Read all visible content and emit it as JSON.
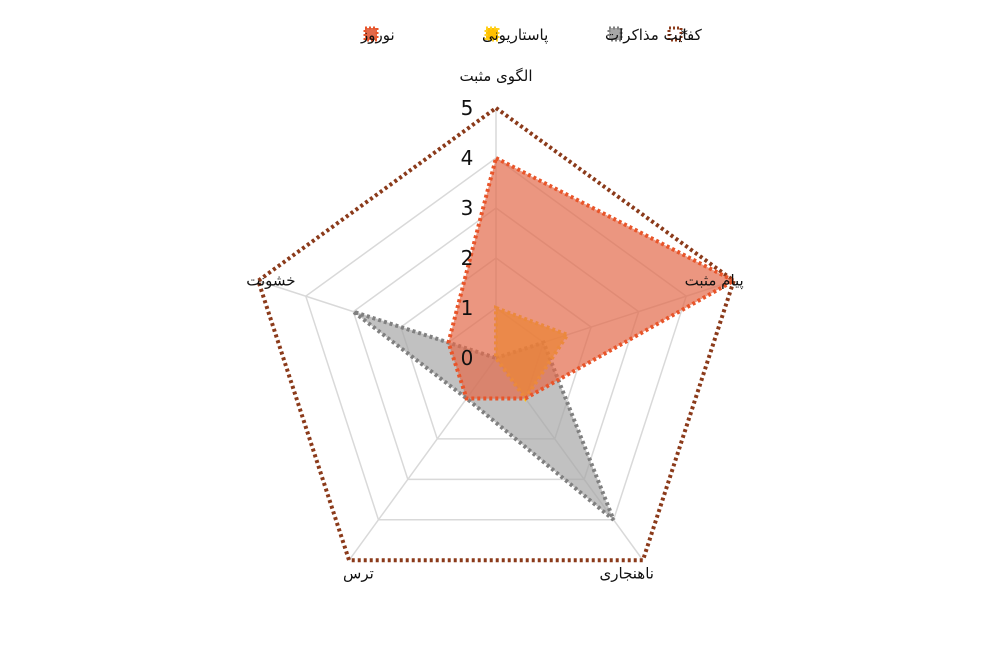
{
  "chart_data": {
    "type": "radar",
    "title": "",
    "axes": [
      "الگوی مثبت",
      "پیام مثبت",
      "ناهنجاری",
      "ترس",
      "خشونت"
    ],
    "scale": {
      "min": 0,
      "max": 5,
      "ticks": [
        "0",
        "1",
        "2",
        "3",
        "4",
        "5"
      ]
    },
    "grid": true,
    "legend_position": "top",
    "series": [
      {
        "name": "*",
        "values": [
          5,
          5,
          5,
          5,
          5
        ],
        "stroke": "#8b3a1a",
        "fill": "none",
        "dashed": true
      },
      {
        "name": "کفایت مذاکرات",
        "values": [
          0,
          1,
          4,
          1,
          3
        ],
        "stroke": "#808080",
        "fill": "#a6a6a6",
        "dashed": true
      },
      {
        "name": "پاستاریونی",
        "values": [
          1,
          1.5,
          1,
          0,
          0
        ],
        "stroke": "#ffd21f",
        "fill": "#ffc000",
        "dashed": true
      },
      {
        "name": "نوروز",
        "values": [
          4,
          5,
          1,
          1,
          1
        ],
        "stroke": "#e8552a",
        "fill": "#e2694a",
        "dashed": true
      }
    ]
  }
}
